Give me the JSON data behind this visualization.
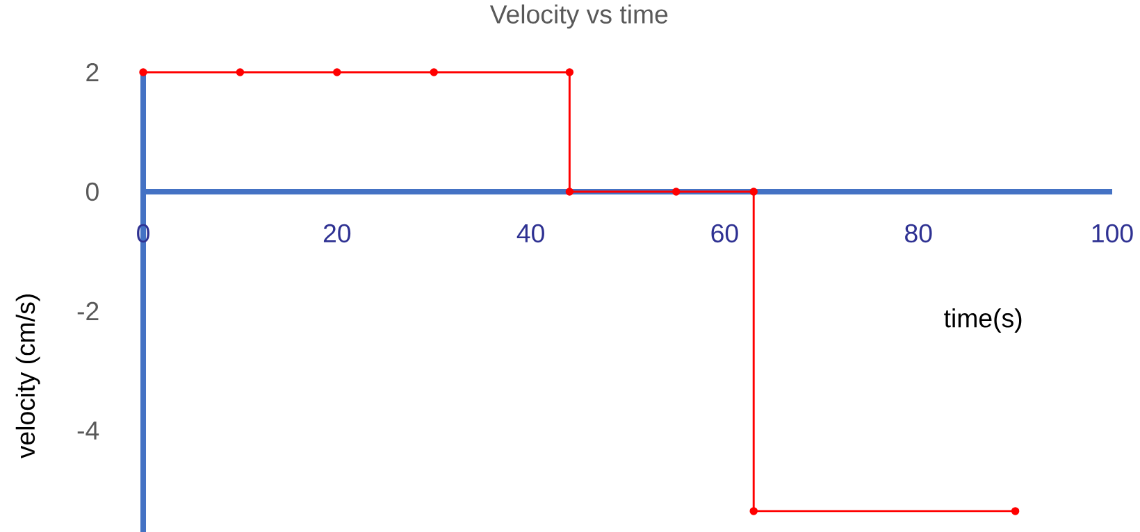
{
  "chart_data": {
    "type": "line",
    "title": "Velocity vs time",
    "xlabel": "time(s)",
    "ylabel": "velocity (cm/s)",
    "x": [
      0,
      10,
      20,
      30,
      44,
      44,
      55,
      63,
      63,
      90
    ],
    "series": [
      {
        "color": "#ff0000",
        "values": [
          2,
          2,
          2,
          2,
          2,
          0,
          0,
          0,
          -5.35,
          -5.35
        ]
      }
    ],
    "xlim": [
      0,
      100
    ],
    "ylim": [
      -5.7,
      2
    ],
    "xticks": [
      0,
      20,
      40,
      60,
      80,
      100
    ],
    "yticks": [
      -4,
      -2,
      0,
      2
    ],
    "marker": "circle",
    "line_style": "solid",
    "grid": false
  }
}
